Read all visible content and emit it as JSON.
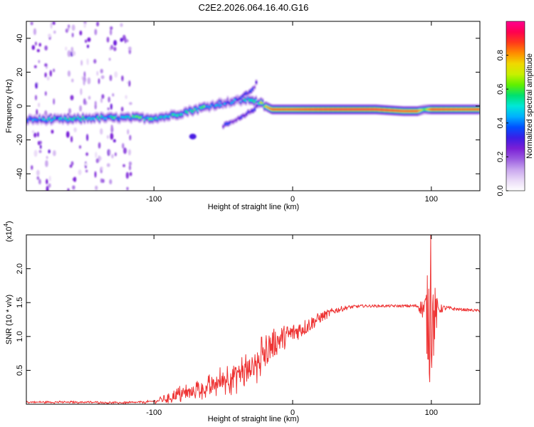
{
  "title": "C2E2.2026.064.16.40.G16",
  "chart_data": [
    {
      "type": "heatmap",
      "name": "spectrogram",
      "xlabel": "Height of straight line (km)",
      "ylabel": "Frequency (Hz)",
      "xlim": [
        -192,
        135
      ],
      "ylim": [
        -50,
        50
      ],
      "xticks": [
        -100,
        0,
        100
      ],
      "xtick_labels": [
        "-100",
        "0",
        "100"
      ],
      "yticks": [
        -40,
        -20,
        0,
        20,
        40
      ],
      "ytick_labels": [
        "-40",
        "-20",
        "0",
        "20",
        "40"
      ],
      "colorbar": {
        "label": "Normalized spectral amplitude",
        "range": [
          0,
          1
        ],
        "ticks": [
          0.0,
          0.2,
          0.4,
          0.6,
          0.8
        ],
        "tick_labels": [
          "0.0",
          "0.2",
          "0.4",
          "0.6",
          "0.8"
        ],
        "colors": [
          "#ffffff",
          "#e9d9f7",
          "#c9a6ee",
          "#9b5ce0",
          "#7a1fd6",
          "#3b1ee6",
          "#0050ff",
          "#00b0ff",
          "#00e8d8",
          "#00e070",
          "#60f000",
          "#c8f000",
          "#f0d800",
          "#ff8c00",
          "#ff3a1a",
          "#ff0050",
          "#ff0090"
        ]
      },
      "ridge": {
        "x": [
          -192,
          -175,
          -160,
          -145,
          -130,
          -115,
          -100,
          -90,
          -80,
          -70,
          -60,
          -50,
          -40,
          -30,
          -22,
          -15,
          -5,
          0,
          10,
          30,
          60,
          80,
          90,
          95,
          100,
          120,
          135
        ],
        "freq_hz": [
          -8,
          -8,
          -8,
          -7,
          -7,
          -7,
          -7,
          -6,
          -4,
          -2,
          0,
          2,
          3,
          4,
          1,
          -2,
          -2,
          -2,
          -2,
          -2,
          -2,
          -3,
          -3,
          -2,
          -2,
          -2,
          -2
        ],
        "amplitude": [
          0.45,
          0.45,
          0.5,
          0.5,
          0.5,
          0.55,
          0.55,
          0.5,
          0.5,
          0.55,
          0.55,
          0.45,
          0.45,
          0.5,
          0.7,
          0.9,
          0.9,
          0.9,
          0.92,
          0.95,
          0.95,
          0.9,
          0.9,
          0.6,
          0.92,
          0.9,
          0.9
        ]
      },
      "upper_branch": {
        "x": [
          -55,
          -45,
          -38,
          -32,
          -28,
          -25
        ],
        "freq_hz": [
          0,
          2,
          5,
          8,
          11,
          15
        ],
        "amplitude": [
          0.4,
          0.4,
          0.4,
          0.35,
          0.3,
          0.25
        ]
      },
      "lower_branch": {
        "x": [
          -50,
          -42,
          -35,
          -30,
          -25
        ],
        "freq_hz": [
          -12,
          -9,
          -6,
          -3,
          0
        ],
        "amplitude": [
          0.3,
          0.3,
          0.3,
          0.3,
          0.3
        ]
      },
      "isolated_blob": {
        "x": -72,
        "freq_hz": -18,
        "amplitude": 0.3
      },
      "noise_columns_x": [
        -185,
        -175,
        -160,
        -150,
        -140,
        -130,
        -120
      ]
    },
    {
      "type": "line",
      "name": "snr",
      "xlabel": "Height of straight line (km)",
      "ylabel": "SNR (10 * v/v)",
      "y_multiplier": "(x10",
      "y_exponent": "4",
      "y_multiplier_close": ")",
      "xlim": [
        -192,
        135
      ],
      "ylim": [
        0,
        2.5
      ],
      "xticks": [
        -100,
        0,
        100
      ],
      "xtick_labels": [
        "-100",
        "0",
        "100"
      ],
      "yticks": [
        0.5,
        1.0,
        1.5,
        2.0
      ],
      "ytick_labels": [
        "0.5",
        "1.0",
        "1.5",
        "2.0"
      ],
      "color": "#ee3333",
      "envelope": {
        "x": [
          -192,
          -150,
          -120,
          -110,
          -100,
          -90,
          -80,
          -70,
          -60,
          -50,
          -40,
          -30,
          -25,
          -20,
          -10,
          0,
          10,
          20,
          30,
          40,
          50,
          60,
          70,
          80,
          90,
          95,
          98,
          100,
          105,
          110,
          120,
          135
        ],
        "base": [
          0.03,
          0.03,
          0.02,
          0.03,
          0.04,
          0.08,
          0.15,
          0.2,
          0.25,
          0.35,
          0.45,
          0.55,
          0.6,
          0.8,
          0.95,
          1.05,
          1.15,
          1.28,
          1.38,
          1.43,
          1.45,
          1.45,
          1.45,
          1.45,
          1.45,
          1.4,
          1.2,
          1.2,
          1.4,
          1.42,
          1.4,
          1.38
        ],
        "amplitude": [
          0.02,
          0.02,
          0.02,
          0.02,
          0.03,
          0.08,
          0.15,
          0.18,
          0.2,
          0.25,
          0.3,
          0.35,
          0.35,
          0.25,
          0.2,
          0.15,
          0.12,
          0.08,
          0.05,
          0.03,
          0.02,
          0.02,
          0.02,
          0.02,
          0.03,
          0.2,
          0.85,
          0.85,
          0.08,
          0.04,
          0.02,
          0.02
        ]
      },
      "spike": {
        "x": 99.5,
        "max": 2.5,
        "min": 0.33
      }
    }
  ]
}
